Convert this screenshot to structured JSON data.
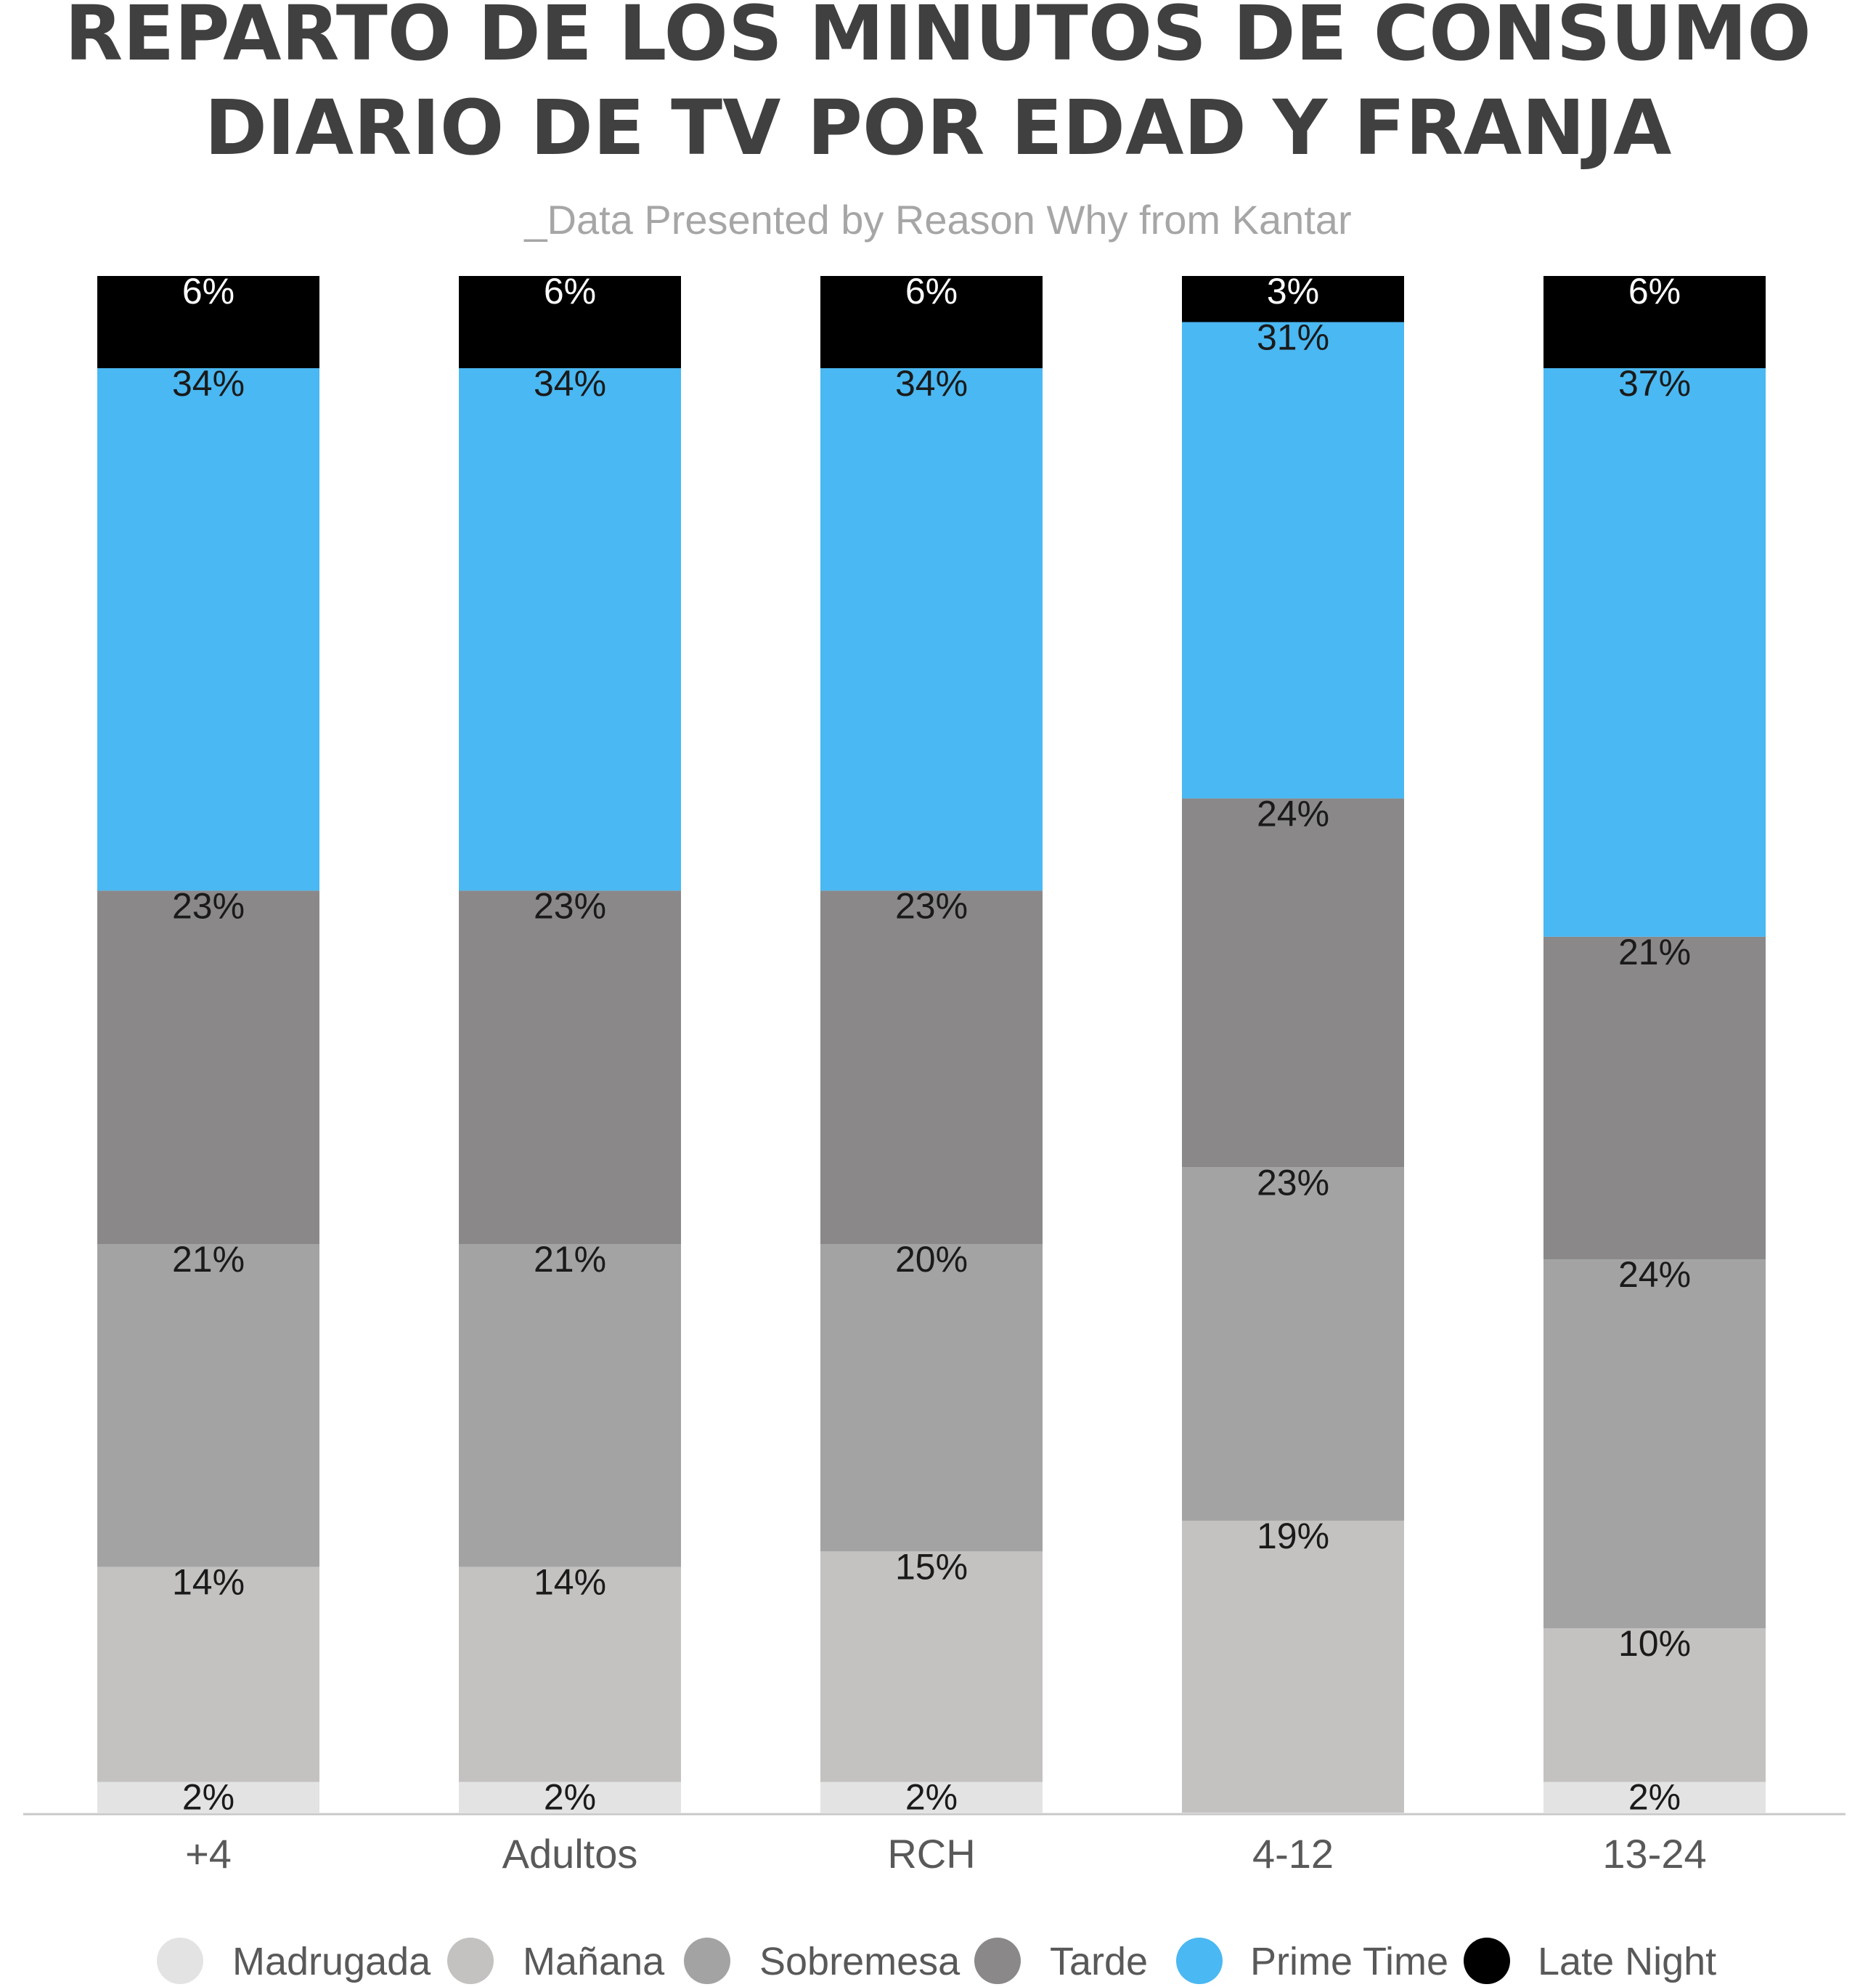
{
  "chart_data": {
    "type": "bar",
    "stacked": true,
    "title_lines": [
      "REPARTO DE LOS MINUTOS DE CONSUMO",
      "DIARIO DE TV POR EDAD Y FRANJA"
    ],
    "subtitle": "_Data Presented by Reason Why from Kantar",
    "categories": [
      "+4",
      "Adultos",
      "RCH",
      "4-12",
      "13-24"
    ],
    "ylim": [
      0,
      100
    ],
    "grid": false,
    "legend_position": "bottom",
    "series": [
      {
        "name": "Madrugada",
        "color": "#e3e3e3",
        "label_color": "#1a1a1a",
        "values": [
          2,
          2,
          2,
          0,
          2
        ],
        "labels": [
          "2%",
          "2%",
          "2%",
          "",
          "2%"
        ]
      },
      {
        "name": "Mañana",
        "color": "#c4c2c1",
        "label_color": "#1a1a1a",
        "values": [
          14,
          14,
          15,
          19,
          10
        ],
        "labels": [
          "14%",
          "14%",
          "15%",
          "19%",
          "10%"
        ]
      },
      {
        "name": "Sobremesa",
        "color": "#a3a3a3",
        "label_color": "#1a1a1a",
        "values": [
          21,
          21,
          20,
          23,
          24
        ],
        "labels": [
          "21%",
          "21%",
          "20%",
          "23%",
          "24%"
        ]
      },
      {
        "name": "Tarde",
        "color": "#8a8889",
        "label_color": "#1a1a1a",
        "values": [
          23,
          23,
          23,
          24,
          21
        ],
        "labels": [
          "23%",
          "23%",
          "23%",
          "24%",
          "21%"
        ]
      },
      {
        "name": "Prime Time",
        "color": "#4ab8f2",
        "label_color": "#1a1a1a",
        "values": [
          34,
          34,
          34,
          31,
          37
        ],
        "labels": [
          "34%",
          "34%",
          "34%",
          "31%",
          "37%"
        ]
      },
      {
        "name": "Late Night",
        "color": "#000000",
        "label_color": "#ffffff",
        "values": [
          6,
          6,
          6,
          3,
          6
        ],
        "labels": [
          "6%",
          "6%",
          "6%",
          "3%",
          "6%"
        ]
      }
    ]
  }
}
